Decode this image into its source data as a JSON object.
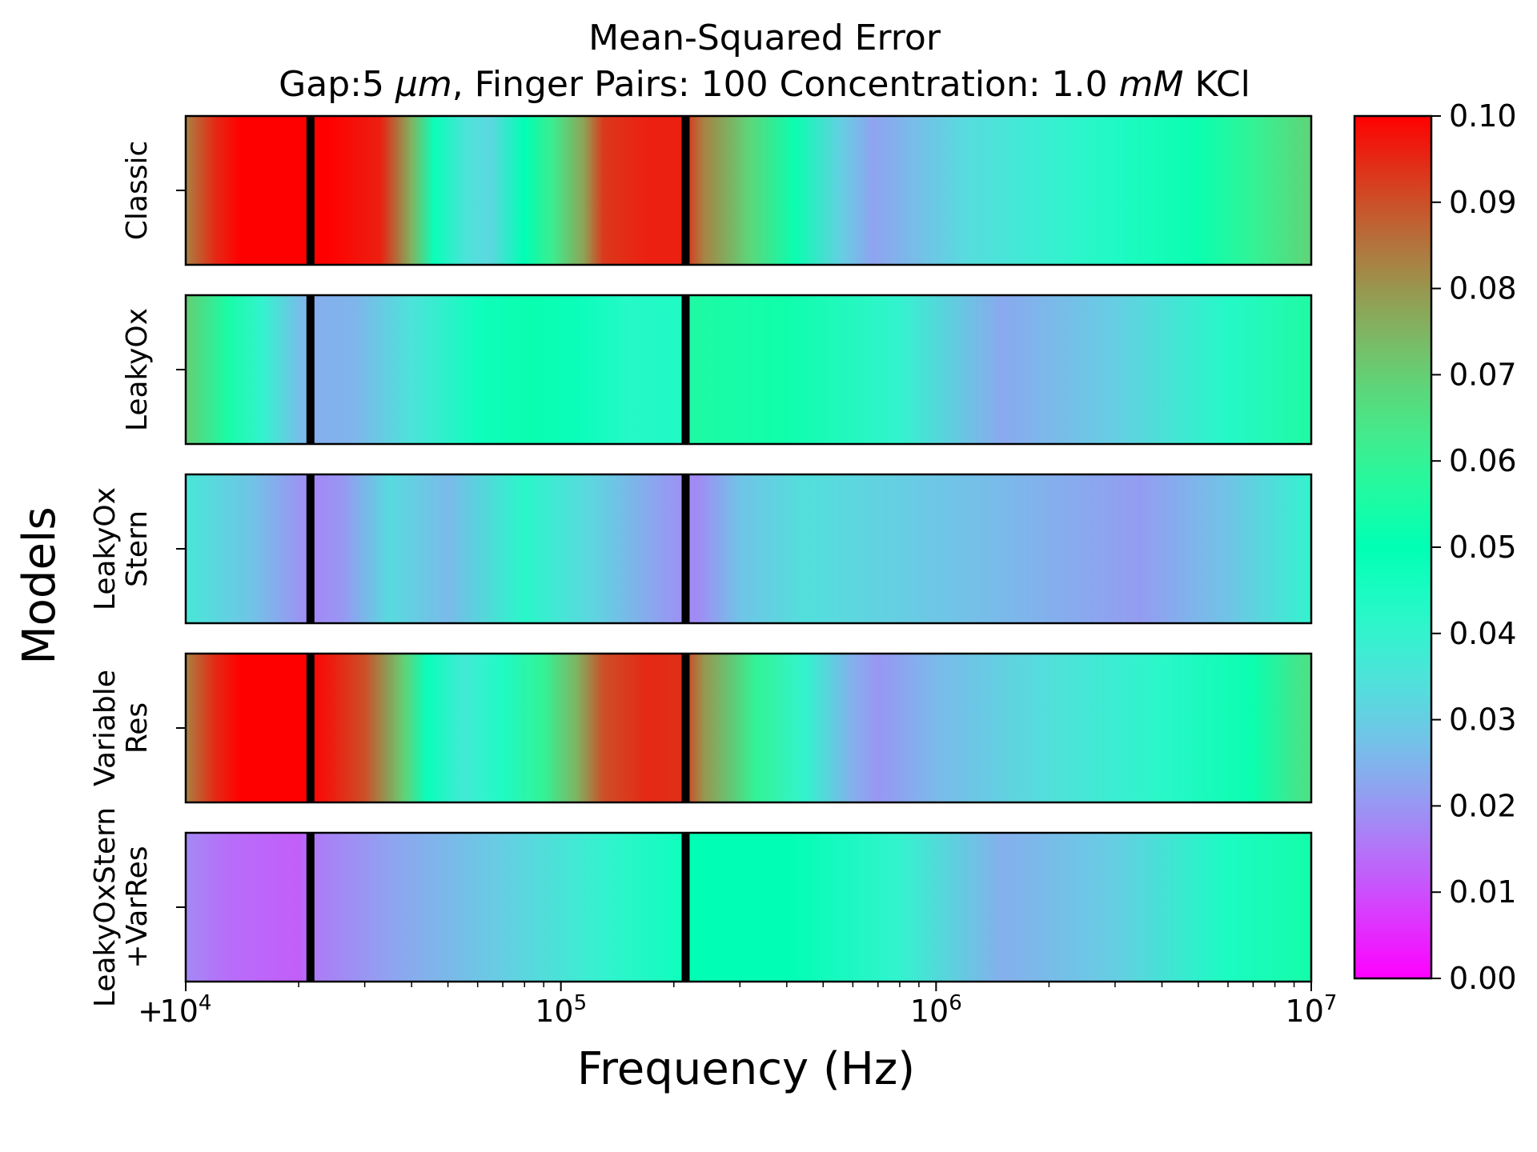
{
  "chart_data": {
    "type": "heatmap",
    "title": "Mean-Squared Error",
    "subtitle_parts": [
      "Gap:5 ",
      "μm",
      ", Finger Pairs: 100 Concentration: 1.0 ",
      "mM",
      " KCl"
    ],
    "xlabel": "Frequency (Hz)",
    "ylabel": "Models",
    "x_scale": "log",
    "xlim": [
      10000,
      10000000
    ],
    "x_tick_labels": [
      {
        "base": "10",
        "exp": "4",
        "value": 10000
      },
      {
        "base": "10",
        "exp": "5",
        "value": 100000
      },
      {
        "base": "10",
        "exp": "6",
        "value": 1000000
      },
      {
        "base": "10",
        "exp": "7",
        "value": 10000000
      }
    ],
    "x_tick_prefix": "+",
    "colormap": "rainbow",
    "colorbar": {
      "range": [
        0.0,
        0.1
      ],
      "ticks": [
        "0.00",
        "0.01",
        "0.02",
        "0.03",
        "0.04",
        "0.05",
        "0.06",
        "0.07",
        "0.08",
        "0.09",
        "0.10"
      ]
    },
    "vertical_markers_hz": [
      21500,
      215000
    ],
    "models": [
      {
        "label_lines": [
          "Classic"
        ],
        "mse_profile": [
          [
            10000,
            0.083
          ],
          [
            12000,
            0.095
          ],
          [
            14000,
            0.1
          ],
          [
            21000,
            0.1
          ],
          [
            24000,
            0.1
          ],
          [
            33000,
            0.096
          ],
          [
            40000,
            0.075
          ],
          [
            46000,
            0.048
          ],
          [
            56000,
            0.035
          ],
          [
            65000,
            0.032
          ],
          [
            80000,
            0.05
          ],
          [
            95000,
            0.062
          ],
          [
            115000,
            0.078
          ],
          [
            130000,
            0.093
          ],
          [
            170000,
            0.096
          ],
          [
            210000,
            0.096
          ],
          [
            240000,
            0.083
          ],
          [
            320000,
            0.068
          ],
          [
            420000,
            0.052
          ],
          [
            560000,
            0.03
          ],
          [
            680000,
            0.022
          ],
          [
            900000,
            0.027
          ],
          [
            1200000,
            0.033
          ],
          [
            2000000,
            0.039
          ],
          [
            3000000,
            0.044
          ],
          [
            5000000,
            0.052
          ],
          [
            7000000,
            0.06
          ],
          [
            10000000,
            0.069
          ]
        ]
      },
      {
        "label_lines": [
          "LeakyOx"
        ],
        "mse_profile": [
          [
            10000,
            0.07
          ],
          [
            13000,
            0.055
          ],
          [
            16000,
            0.04
          ],
          [
            20000,
            0.027
          ],
          [
            22000,
            0.024
          ],
          [
            28000,
            0.025
          ],
          [
            40000,
            0.035
          ],
          [
            60000,
            0.047
          ],
          [
            80000,
            0.052
          ],
          [
            110000,
            0.048
          ],
          [
            150000,
            0.043
          ],
          [
            210000,
            0.044
          ],
          [
            220000,
            0.056
          ],
          [
            400000,
            0.053
          ],
          [
            800000,
            0.04
          ],
          [
            1500000,
            0.023
          ],
          [
            3000000,
            0.03
          ],
          [
            6000000,
            0.043
          ],
          [
            10000000,
            0.056
          ]
        ]
      },
      {
        "label_lines": [
          "LeakyOx",
          "Stern"
        ],
        "mse_profile": [
          [
            10000,
            0.036
          ],
          [
            15000,
            0.028
          ],
          [
            20000,
            0.02
          ],
          [
            22000,
            0.018
          ],
          [
            26000,
            0.02
          ],
          [
            35000,
            0.033
          ],
          [
            50000,
            0.026
          ],
          [
            80000,
            0.042
          ],
          [
            120000,
            0.032
          ],
          [
            200000,
            0.02
          ],
          [
            230000,
            0.018
          ],
          [
            300000,
            0.028
          ],
          [
            450000,
            0.034
          ],
          [
            800000,
            0.03
          ],
          [
            1500000,
            0.026
          ],
          [
            3500000,
            0.021
          ],
          [
            6000000,
            0.028
          ],
          [
            10000000,
            0.04
          ]
        ]
      },
      {
        "label_lines": [
          "Variable",
          "Res"
        ],
        "mse_profile": [
          [
            10000,
            0.083
          ],
          [
            12000,
            0.095
          ],
          [
            14000,
            0.1
          ],
          [
            21000,
            0.1
          ],
          [
            24000,
            0.097
          ],
          [
            30000,
            0.09
          ],
          [
            38000,
            0.07
          ],
          [
            44000,
            0.048
          ],
          [
            55000,
            0.037
          ],
          [
            70000,
            0.044
          ],
          [
            90000,
            0.06
          ],
          [
            110000,
            0.075
          ],
          [
            130000,
            0.09
          ],
          [
            170000,
            0.095
          ],
          [
            210000,
            0.094
          ],
          [
            240000,
            0.08
          ],
          [
            330000,
            0.06
          ],
          [
            450000,
            0.04
          ],
          [
            600000,
            0.024
          ],
          [
            700000,
            0.02
          ],
          [
            1000000,
            0.026
          ],
          [
            2000000,
            0.034
          ],
          [
            4000000,
            0.042
          ],
          [
            7000000,
            0.052
          ],
          [
            10000000,
            0.066
          ]
        ]
      },
      {
        "label_lines": [
          "LeakyOxStern",
          "+VarRes"
        ],
        "mse_profile": [
          [
            10000,
            0.018
          ],
          [
            13000,
            0.014
          ],
          [
            20000,
            0.012
          ],
          [
            22000,
            0.016
          ],
          [
            35000,
            0.022
          ],
          [
            70000,
            0.03
          ],
          [
            130000,
            0.04
          ],
          [
            210000,
            0.047
          ],
          [
            220000,
            0.05
          ],
          [
            400000,
            0.05
          ],
          [
            800000,
            0.04
          ],
          [
            1500000,
            0.024
          ],
          [
            3000000,
            0.03
          ],
          [
            6000000,
            0.045
          ],
          [
            10000000,
            0.054
          ]
        ]
      }
    ]
  }
}
